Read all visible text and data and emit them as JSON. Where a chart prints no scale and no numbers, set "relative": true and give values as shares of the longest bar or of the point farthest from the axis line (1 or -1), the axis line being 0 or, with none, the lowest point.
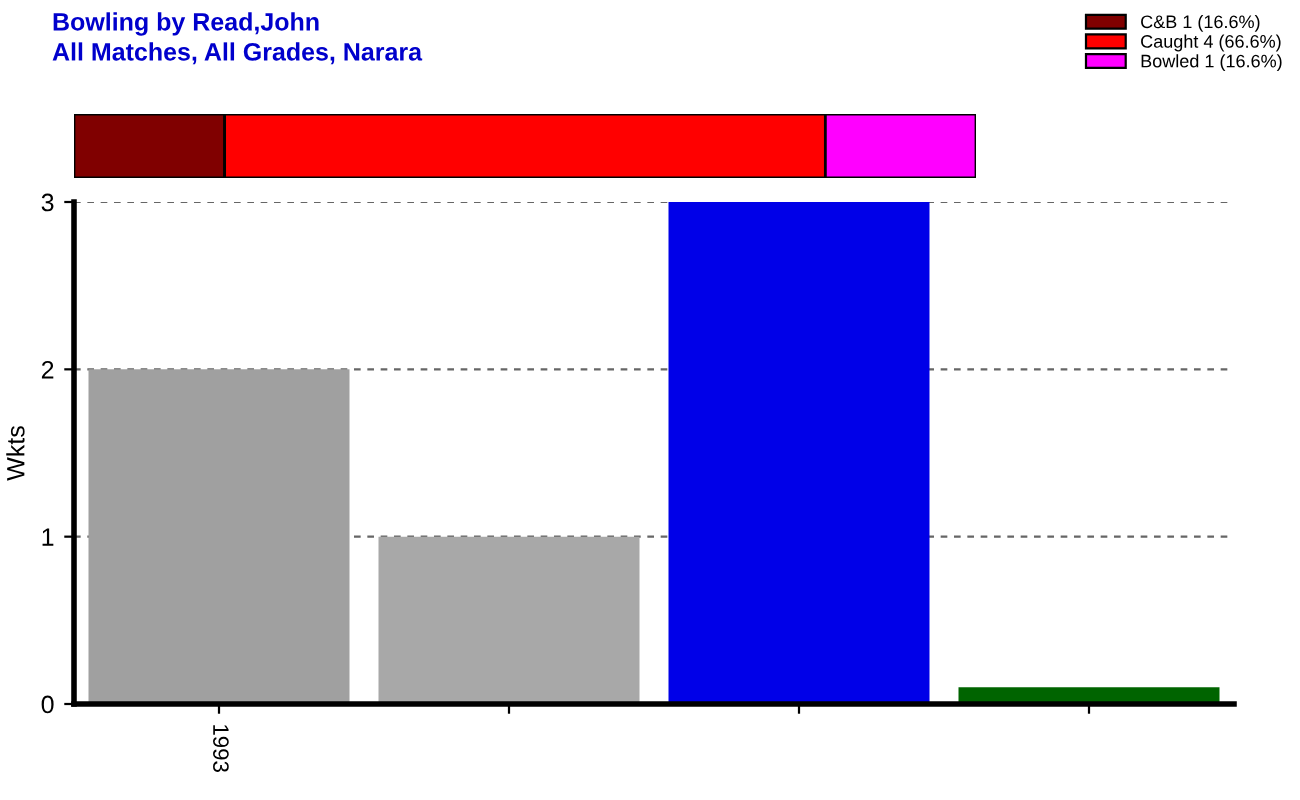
{
  "chart_data": [
    {
      "type": "bar",
      "title": "Bowling by Read,John",
      "subtitle": "All Matches, All Grades, Narara",
      "orientation": "horizontal",
      "stacked": true,
      "relative": true,
      "categories": [
        null
      ],
      "legend": "top right",
      "series": [
        {
          "name": "C&B 1 (16.6%)",
          "color": "#800000",
          "values": [
            0.167
          ]
        },
        {
          "name": "Caught 4 (66.6%)",
          "color": "#ff0000",
          "values": [
            0.666
          ]
        },
        {
          "name": "Bowled 1 (16.6%)",
          "color": "#ff00ff",
          "values": [
            0.167
          ]
        }
      ]
    },
    {
      "type": "bar",
      "ylabel": "Wkts",
      "categories": [
        "1993",
        null,
        null,
        null
      ],
      "values": [
        2,
        1,
        3,
        0.1
      ],
      "colors": [
        "#a0a0a0",
        "#a8a8a8",
        "#0000e8",
        "#006400"
      ],
      "ylim": [
        0,
        3
      ],
      "yticks": [
        0,
        1,
        2,
        3
      ],
      "grid": "y"
    }
  ]
}
